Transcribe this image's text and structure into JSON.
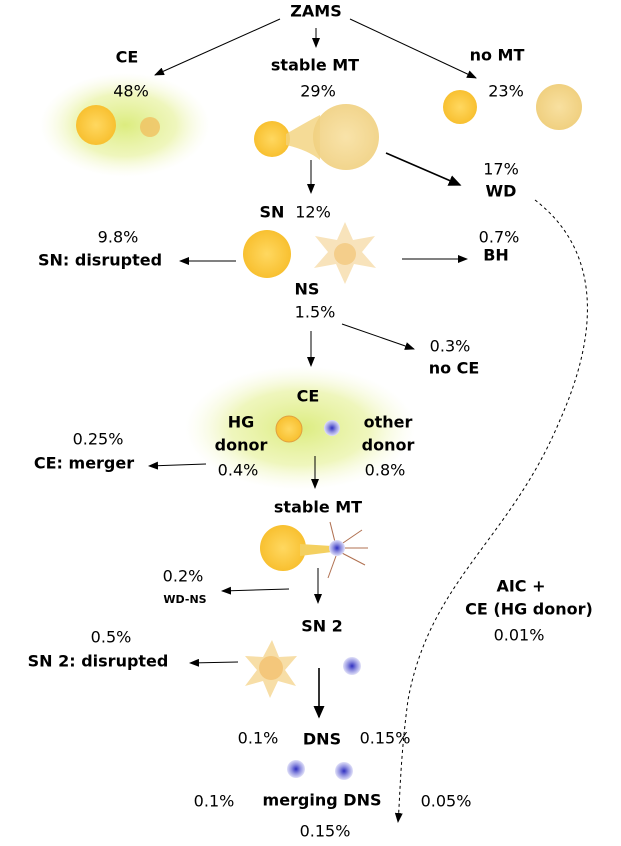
{
  "nodes": [
    {
      "label": "ZAMS"
    },
    {
      "label": "CE",
      "fraction": "48%"
    },
    {
      "label": "stable MT",
      "fraction": "29%"
    },
    {
      "label": "no MT",
      "fraction": "23%"
    },
    {
      "label": "WD",
      "fraction": "17%"
    },
    {
      "label": "SN",
      "fraction": "12%"
    },
    {
      "label": "SN: disrupted",
      "fraction": "9.8%"
    },
    {
      "label": "BH",
      "fraction": "0.7%"
    },
    {
      "label": "NS",
      "fraction": "1.5%"
    },
    {
      "label": "no CE",
      "fraction": "0.3%"
    },
    {
      "label": "CE"
    },
    {
      "label_lines": [
        "HG",
        "donor"
      ],
      "fraction": "0.4%"
    },
    {
      "label_lines": [
        "other",
        "donor"
      ],
      "fraction": "0.8%"
    },
    {
      "label": "CE: merger",
      "fraction": "0.25%"
    },
    {
      "label": "stable MT"
    },
    {
      "label": "WD-NS",
      "fraction": "0.2%"
    },
    {
      "label_lines": [
        "AIC +",
        "CE (HG donor)"
      ],
      "fraction": "0.01%"
    },
    {
      "label": "SN 2"
    },
    {
      "label": "SN 2: disrupted",
      "fraction": "0.5%"
    },
    {
      "label": "DNS",
      "fractions": [
        "0.1%",
        "0.15%"
      ]
    },
    {
      "label": "merging DNS",
      "fractions": [
        "0.1%",
        "0.05%",
        "0.15%"
      ]
    }
  ]
}
